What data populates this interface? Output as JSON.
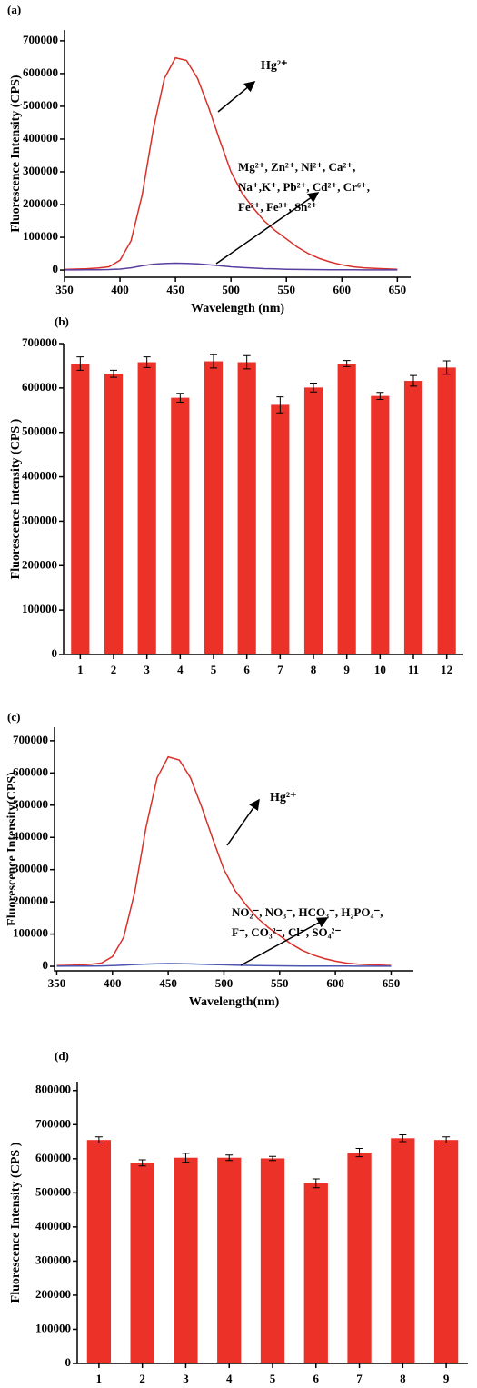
{
  "chart_data": [
    {
      "type": "line",
      "panel_label": "(a)",
      "x_label": "Wavelength (nm)",
      "y_label": "Fluorescence Intensity (CPS)",
      "x": [
        350,
        360,
        370,
        380,
        390,
        400,
        410,
        420,
        430,
        440,
        450,
        460,
        470,
        480,
        490,
        500,
        510,
        520,
        530,
        540,
        550,
        560,
        570,
        580,
        590,
        600,
        610,
        620,
        630,
        640,
        650
      ],
      "series": [
        {
          "name": "Hg²⁺",
          "color": "#d9302a",
          "values": [
            2000,
            3000,
            4000,
            6000,
            10000,
            30000,
            90000,
            230000,
            430000,
            585000,
            648000,
            640000,
            585000,
            495000,
            395000,
            300000,
            235000,
            190000,
            150000,
            120000,
            95000,
            70000,
            50000,
            35000,
            24000,
            16000,
            10000,
            7000,
            5000,
            3500,
            2500
          ]
        },
        {
          "color": "#5b3fa0",
          "values": [
            500,
            600,
            800,
            1000,
            1500,
            3000,
            7000,
            13000,
            18000,
            20000,
            21000,
            20500,
            19000,
            16000,
            13000,
            10000,
            8000,
            6000,
            4500,
            3500,
            2500,
            2000,
            1500,
            1200,
            1000,
            800,
            700,
            600,
            500,
            500,
            500
          ]
        }
      ],
      "annotations": [
        "Mg²⁺, Zn²⁺, Ni²⁺, Ca²⁺,",
        "Na⁺,K⁺, Pb²⁺, Cd²⁺, Cr⁶⁺,",
        "Fe²⁺, Fe³⁺, Sn²⁺"
      ],
      "xlim": [
        350,
        662
      ],
      "xticks": [
        350,
        400,
        450,
        500,
        550,
        600,
        650
      ],
      "ylim": [
        -22000,
        733000
      ],
      "yticks": [
        0,
        100000,
        200000,
        300000,
        400000,
        500000,
        600000,
        700000
      ]
    },
    {
      "type": "bar",
      "panel_label": "(b)",
      "y_label": "Fluorescence Intensity (CPS )",
      "categories": [
        "1",
        "2",
        "3",
        "4",
        "5",
        "6",
        "7",
        "8",
        "9",
        "10",
        "11",
        "12"
      ],
      "values": [
        655000,
        632000,
        658000,
        578000,
        660000,
        658000,
        562000,
        601000,
        655000,
        582000,
        616000,
        646000
      ],
      "errors": [
        15000,
        8000,
        12000,
        10000,
        15000,
        15000,
        18000,
        10000,
        7000,
        8000,
        12000,
        15000
      ],
      "color": "#ec3129",
      "ylim": [
        0,
        700000
      ],
      "yticks": [
        0,
        100000,
        200000,
        300000,
        400000,
        500000,
        600000,
        700000
      ]
    },
    {
      "type": "line",
      "panel_label": "(c)",
      "x_label": "Wavelength(nm)",
      "y_label": "Fluorescence Intensity(CPS)",
      "x": [
        350,
        360,
        370,
        380,
        390,
        400,
        410,
        420,
        430,
        440,
        450,
        460,
        470,
        480,
        490,
        500,
        510,
        520,
        530,
        540,
        550,
        560,
        570,
        580,
        590,
        600,
        610,
        620,
        630,
        640,
        650
      ],
      "series": [
        {
          "name": "Hg²⁺",
          "color": "#d9302a",
          "values": [
            2000,
            3000,
            4000,
            6000,
            10000,
            30000,
            90000,
            230000,
            430000,
            585000,
            650000,
            640000,
            585000,
            495000,
            395000,
            300000,
            235000,
            190000,
            150000,
            120000,
            95000,
            70000,
            50000,
            35000,
            24000,
            16000,
            10000,
            7000,
            5000,
            3500,
            2500
          ]
        },
        {
          "color": "#4a56b0",
          "values": [
            500,
            600,
            700,
            900,
            1200,
            2000,
            3500,
            5500,
            7000,
            8000,
            8500,
            8200,
            7500,
            6500,
            5500,
            4500,
            3500,
            2800,
            2200,
            1800,
            1500,
            1200,
            1000,
            900,
            800,
            700,
            600,
            500,
            500,
            500,
            500
          ]
        }
      ],
      "annotations": [
        "NO₂⁻, NO₃⁻, HCO₃⁻, H₂PO₄⁻,",
        "F⁻, CO₃²⁻, Cl⁻, SO₄²⁻"
      ],
      "xlim": [
        348,
        670
      ],
      "xticks": [
        350,
        400,
        450,
        500,
        550,
        600,
        650
      ],
      "ylim": [
        -14000,
        742000
      ],
      "yticks": [
        0,
        100000,
        200000,
        300000,
        400000,
        500000,
        600000,
        700000
      ]
    },
    {
      "type": "bar",
      "panel_label": "(d)",
      "y_label": "Fluorescence Intensity (CPS )",
      "categories": [
        "1",
        "2",
        "3",
        "4",
        "5",
        "6",
        "7",
        "8",
        "9"
      ],
      "values": [
        655000,
        588000,
        603000,
        603000,
        601000,
        528000,
        618000,
        660000,
        655000
      ],
      "errors": [
        9000,
        9000,
        13000,
        8000,
        6000,
        13000,
        12000,
        10000,
        9000
      ],
      "color": "#ec3129",
      "ylim": [
        0,
        826000
      ],
      "yticks": [
        0,
        100000,
        200000,
        300000,
        400000,
        500000,
        600000,
        700000,
        800000
      ]
    }
  ]
}
